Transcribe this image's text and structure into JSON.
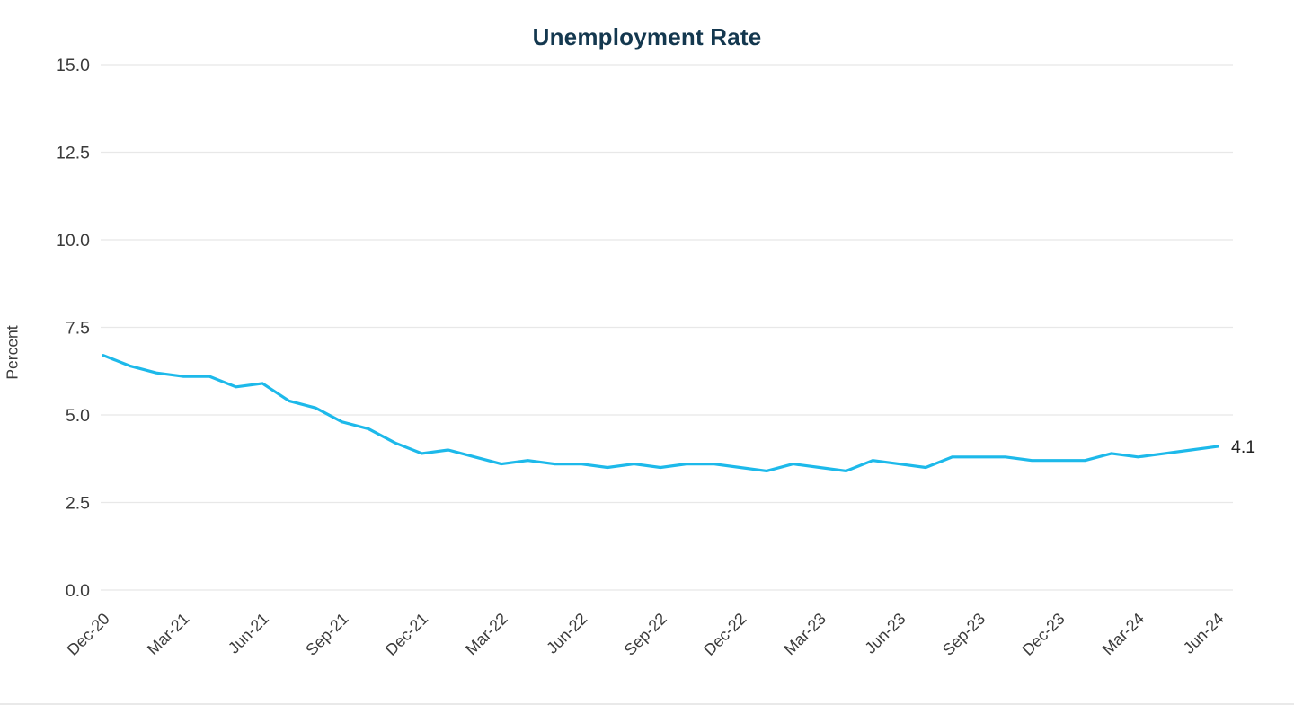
{
  "chart_data": {
    "type": "line",
    "title": "Unemployment Rate",
    "ylabel": "Percent",
    "xlabel": "",
    "ylim": [
      0,
      15
    ],
    "y_ticks": [
      "0.0",
      "2.5",
      "5.0",
      "7.5",
      "10.0",
      "12.5",
      "15.0"
    ],
    "x_tick_labels": [
      "Dec-20",
      "Mar-21",
      "Jun-21",
      "Sep-21",
      "Dec-21",
      "Mar-22",
      "Jun-22",
      "Sep-22",
      "Dec-22",
      "Mar-23",
      "Jun-23",
      "Sep-23",
      "Dec-23",
      "Mar-24",
      "Jun-24"
    ],
    "x_tick_every": 3,
    "x": [
      "Dec-20",
      "Jan-21",
      "Feb-21",
      "Mar-21",
      "Apr-21",
      "May-21",
      "Jun-21",
      "Jul-21",
      "Aug-21",
      "Sep-21",
      "Oct-21",
      "Nov-21",
      "Dec-21",
      "Jan-22",
      "Feb-22",
      "Mar-22",
      "Apr-22",
      "May-22",
      "Jun-22",
      "Jul-22",
      "Aug-22",
      "Sep-22",
      "Oct-22",
      "Nov-22",
      "Dec-22",
      "Jan-23",
      "Feb-23",
      "Mar-23",
      "Apr-23",
      "May-23",
      "Jun-23",
      "Jul-23",
      "Aug-23",
      "Sep-23",
      "Oct-23",
      "Nov-23",
      "Dec-23",
      "Jan-24",
      "Feb-24",
      "Mar-24",
      "Apr-24",
      "May-24",
      "Jun-24"
    ],
    "series": [
      {
        "name": "Unemployment Rate",
        "values": [
          6.7,
          6.4,
          6.2,
          6.1,
          6.1,
          5.8,
          5.9,
          5.4,
          5.2,
          4.8,
          4.6,
          4.2,
          3.9,
          4.0,
          3.8,
          3.6,
          3.7,
          3.6,
          3.6,
          3.5,
          3.6,
          3.5,
          3.6,
          3.6,
          3.5,
          3.4,
          3.6,
          3.5,
          3.4,
          3.7,
          3.6,
          3.5,
          3.8,
          3.8,
          3.8,
          3.7,
          3.7,
          3.7,
          3.9,
          3.8,
          3.9,
          4.0,
          4.1
        ]
      }
    ],
    "end_value_label": "4.1",
    "grid": true,
    "legend_position": "none"
  },
  "colors": {
    "line": "#1db9ea",
    "title": "#14384f",
    "tick_text": "#3b3b3b",
    "grid": "#e8e8e8",
    "end_label": "#222222"
  }
}
